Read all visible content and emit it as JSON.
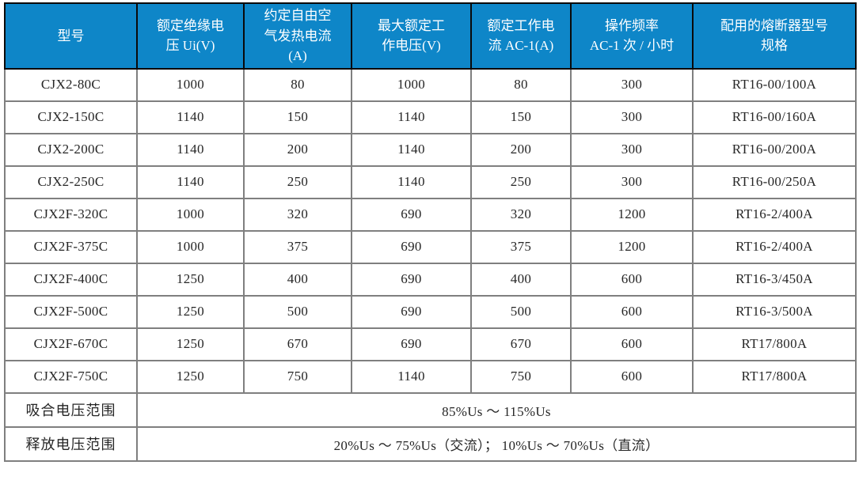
{
  "table": {
    "headers": [
      "型号",
      "额定绝缘电\n压 Ui(V)",
      "约定自由空\n气发热电流\n(A)",
      "最大额定工\n作电压(V)",
      "额定工作电\n流 AC-1(A)",
      "操作频率\nAC-1 次 / 小时",
      "配用的熔断器型号\n规格"
    ],
    "rows": [
      [
        "CJX2-80C",
        "1000",
        "80",
        "1000",
        "80",
        "300",
        "RT16-00/100A"
      ],
      [
        "CJX2-150C",
        "1140",
        "150",
        "1140",
        "150",
        "300",
        "RT16-00/160A"
      ],
      [
        "CJX2-200C",
        "1140",
        "200",
        "1140",
        "200",
        "300",
        "RT16-00/200A"
      ],
      [
        "CJX2-250C",
        "1140",
        "250",
        "1140",
        "250",
        "300",
        "RT16-00/250A"
      ],
      [
        "CJX2F-320C",
        "1000",
        "320",
        "690",
        "320",
        "1200",
        "RT16-2/400A"
      ],
      [
        "CJX2F-375C",
        "1000",
        "375",
        "690",
        "375",
        "1200",
        "RT16-2/400A"
      ],
      [
        "CJX2F-400C",
        "1250",
        "400",
        "690",
        "400",
        "600",
        "RT16-3/450A"
      ],
      [
        "CJX2F-500C",
        "1250",
        "500",
        "690",
        "500",
        "600",
        "RT16-3/500A"
      ],
      [
        "CJX2F-670C",
        "1250",
        "670",
        "690",
        "670",
        "600",
        "RT17/800A"
      ],
      [
        "CJX2F-750C",
        "1250",
        "750",
        "1140",
        "750",
        "600",
        "RT17/800A"
      ]
    ],
    "footer_rows": [
      {
        "label": "吸合电压范围",
        "value": "85%Us ～ 115%Us"
      },
      {
        "label": "释放电压范围",
        "value": "20%Us ～ 75%Us（交流）； 10%Us ～ 70%Us（直流）"
      }
    ],
    "colors": {
      "header_bg": "#0e86c8",
      "header_text": "#ffffff",
      "body_text": "#262626",
      "grid_line": "#7f7f7f",
      "outer_border": "#404040"
    }
  }
}
